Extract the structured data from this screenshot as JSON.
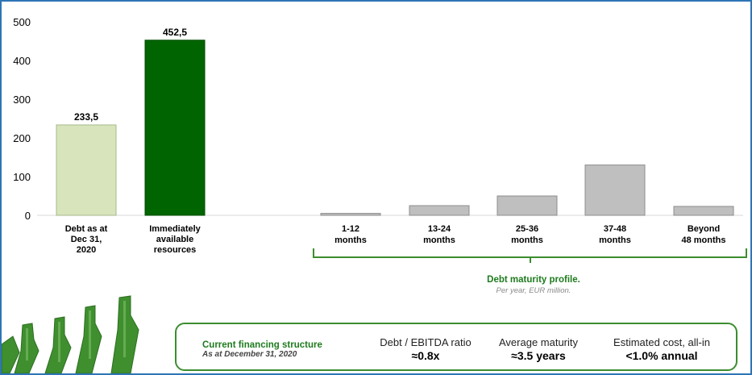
{
  "chart_data": [
    {
      "type": "bar",
      "categories": [
        [
          "Debt as at",
          "Dec 31,",
          "2020"
        ],
        [
          "Immediately",
          "available",
          "resources"
        ]
      ],
      "values": [
        233.5,
        452.5
      ],
      "value_labels": [
        "233,5",
        "452,5"
      ],
      "colors": [
        "#d8e4bc",
        "#006400"
      ],
      "yticks": [
        "0",
        "100",
        "200",
        "300",
        "400",
        "500"
      ],
      "ylim": [
        0,
        500
      ]
    },
    {
      "type": "bar",
      "categories": [
        [
          "1-12",
          "months"
        ],
        [
          "13-24",
          "months"
        ],
        [
          "25-36",
          "months"
        ],
        [
          "37-48",
          "months"
        ],
        [
          "Beyond",
          "48 months"
        ]
      ],
      "values": [
        5,
        25,
        50,
        130,
        23
      ],
      "colors": [
        "#bfbfbf"
      ],
      "ylim": [
        0,
        500
      ],
      "title": "Debt maturity profile.",
      "subtitle": "Per year, EUR million."
    }
  ],
  "info": {
    "title": "Current financing structure",
    "subtitle": "As at December 31, 2020",
    "metrics": [
      {
        "label": "Debt / EBITDA ratio",
        "value": "≈0.8x"
      },
      {
        "label": "Average maturity",
        "value": "≈3.5 years"
      },
      {
        "label": "Estimated cost, all-in",
        "value": "<1.0% annual"
      }
    ]
  },
  "colors": {
    "border": "#2e75b6",
    "accent_green": "#1e7b1e",
    "bar_grey": "#bfbfbf",
    "bottle_green": "#3f8f2f"
  },
  "icons": [
    "bottles-illustration"
  ]
}
